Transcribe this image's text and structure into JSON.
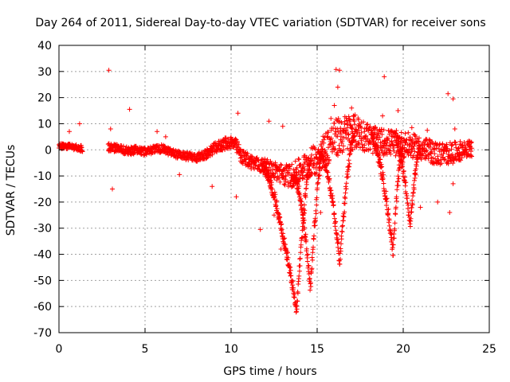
{
  "chart_data": {
    "type": "scatter",
    "title": "Day 264 of 2011, Sidereal Day-to-day VTEC variation (SDTVAR) for receiver sons",
    "xlabel": "GPS time / hours",
    "ylabel": "SDTVAR / TECUs",
    "xlim": [
      0,
      25
    ],
    "ylim": [
      -70,
      40
    ],
    "xticks": [
      "0",
      "5",
      "10",
      "15",
      "20",
      "25"
    ],
    "xtick_values": [
      0,
      5,
      10,
      15,
      20,
      25
    ],
    "yticks": [
      "40",
      "30",
      "20",
      "10",
      "0",
      "-10",
      "-20",
      "-30",
      "-40",
      "-50",
      "-60",
      "-70"
    ],
    "ytick_values": [
      40,
      30,
      20,
      10,
      0,
      -10,
      -20,
      -30,
      -40,
      -50,
      -60,
      -70
    ],
    "grid": true,
    "marker": "+",
    "series_color": "#ff0000",
    "series": [
      {
        "name": "SDTVAR",
        "trend": {
          "x": [
            0.0,
            0.5,
            1.0,
            1.3,
            2.9,
            3.5,
            4.0,
            4.5,
            5.0,
            5.5,
            6.0,
            6.5,
            7.0,
            7.5,
            8.0,
            8.5,
            9.0,
            9.5,
            10.0,
            10.3,
            10.6,
            11.0,
            11.5,
            12.0,
            12.5,
            13.0,
            13.5,
            14.0,
            14.5,
            15.0,
            15.5,
            16.0,
            16.5,
            17.0,
            17.5,
            18.0,
            18.5,
            19.0,
            19.5,
            20.0,
            20.5,
            21.0,
            21.5,
            22.0,
            22.5,
            23.0,
            23.5,
            24.0
          ],
          "y": [
            1.5,
            1.2,
            0.8,
            0.5,
            1.0,
            0.5,
            -0.5,
            0.0,
            -0.8,
            0.2,
            0.5,
            -1.0,
            -2.0,
            -2.5,
            -3.0,
            -2.0,
            0.5,
            2.0,
            3.0,
            1.5,
            -2.5,
            -4.0,
            -5.5,
            -6.5,
            -8.0,
            -9.5,
            -10.0,
            -8.0,
            -5.5,
            -3.0,
            0.5,
            4.0,
            6.0,
            7.0,
            6.5,
            4.5,
            3.0,
            3.0,
            2.5,
            2.0,
            1.5,
            0.5,
            -0.5,
            -1.5,
            -1.5,
            -1.0,
            0.0,
            0.5
          ]
        },
        "spread": {
          "x": [
            0,
            3,
            5,
            8,
            10,
            12,
            13,
            14,
            15,
            16,
            17,
            18,
            19,
            20,
            21,
            22,
            23,
            24
          ],
          "y": [
            1.0,
            1.5,
            1.5,
            1.5,
            2.5,
            3.0,
            4.0,
            5.0,
            6.0,
            7.5,
            7.0,
            5.5,
            5.0,
            5.0,
            4.5,
            4.5,
            4.0,
            3.0
          ]
        },
        "dips": [
          {
            "x_start": 11.8,
            "x_min": 13.8,
            "x_end": 14.6,
            "y_min": -62
          },
          {
            "x_start": 13.6,
            "x_min": 14.6,
            "x_end": 15.3,
            "y_min": -54
          },
          {
            "x_start": 15.1,
            "x_min": 16.3,
            "x_end": 17.2,
            "y_min": -43
          },
          {
            "x_start": 18.2,
            "x_min": 19.4,
            "x_end": 20.0,
            "y_min": -39
          },
          {
            "x_start": 19.6,
            "x_min": 20.4,
            "x_end": 21.0,
            "y_min": -29
          }
        ],
        "outliers": [
          {
            "x": 2.9,
            "y": 30.5
          },
          {
            "x": 16.1,
            "y": 30.8
          },
          {
            "x": 16.3,
            "y": 30.5
          },
          {
            "x": 18.9,
            "y": 28.0
          },
          {
            "x": 22.6,
            "y": 21.5
          },
          {
            "x": 22.9,
            "y": 19.5
          },
          {
            "x": 16.2,
            "y": 24.0
          },
          {
            "x": 16.0,
            "y": 17.0
          },
          {
            "x": 17.0,
            "y": 16.0
          },
          {
            "x": 19.7,
            "y": 15.0
          },
          {
            "x": 4.1,
            "y": 15.5
          },
          {
            "x": 10.4,
            "y": 14.0
          },
          {
            "x": 12.2,
            "y": 11.0
          },
          {
            "x": 1.2,
            "y": 10.0
          },
          {
            "x": 0.6,
            "y": 7.0
          },
          {
            "x": 3.0,
            "y": 8.0
          },
          {
            "x": 3.1,
            "y": -15.0
          },
          {
            "x": 11.7,
            "y": -30.5
          },
          {
            "x": 10.3,
            "y": -18.0
          },
          {
            "x": 8.9,
            "y": -14.0
          },
          {
            "x": 7.0,
            "y": -9.5
          },
          {
            "x": 12.5,
            "y": -25.0
          },
          {
            "x": 12.9,
            "y": -38.0
          },
          {
            "x": 15.2,
            "y": -24.0
          },
          {
            "x": 21.0,
            "y": -22.0
          },
          {
            "x": 22.0,
            "y": -20.0
          },
          {
            "x": 22.7,
            "y": -24.0
          },
          {
            "x": 22.9,
            "y": -13.0
          },
          {
            "x": 13.0,
            "y": 9.0
          },
          {
            "x": 18.8,
            "y": 13.0
          },
          {
            "x": 5.7,
            "y": 7.0
          },
          {
            "x": 4.0,
            "y": -1.0
          },
          {
            "x": 20.5,
            "y": 8.5
          },
          {
            "x": 21.4,
            "y": 7.5
          },
          {
            "x": 23.0,
            "y": 8.0
          },
          {
            "x": 15.8,
            "y": 12.0
          },
          {
            "x": 17.4,
            "y": 11.5
          },
          {
            "x": 6.2,
            "y": 5.0
          },
          {
            "x": 9.5,
            "y": 3.5
          }
        ]
      }
    ]
  }
}
